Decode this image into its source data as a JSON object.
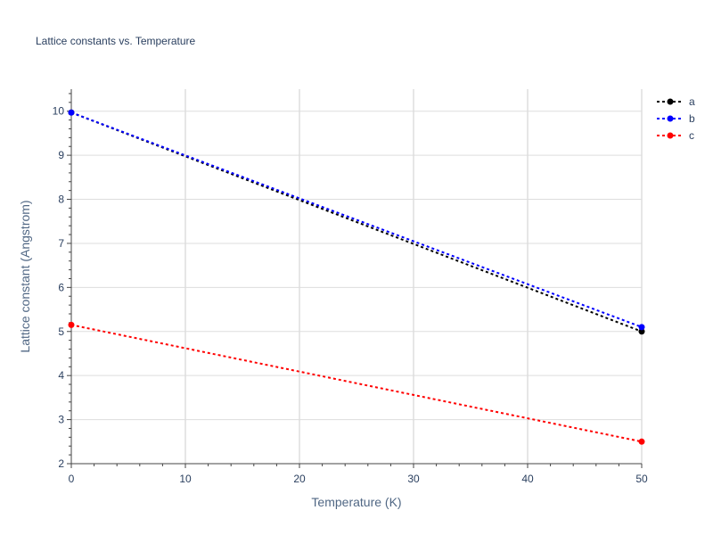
{
  "chart_data": {
    "type": "line",
    "title": "Lattice constants vs. Temperature",
    "xlabel": "Temperature (K)",
    "ylabel": "Lattice constant (Angstrom)",
    "xlim": [
      0,
      50
    ],
    "ylim": [
      2,
      10.5
    ],
    "x_ticks": [
      0,
      10,
      20,
      30,
      40,
      50
    ],
    "y_ticks": [
      2,
      3,
      4,
      5,
      6,
      7,
      8,
      9,
      10
    ],
    "grid": true,
    "legend_position": "top-right",
    "x": [
      0,
      50
    ],
    "series": [
      {
        "name": "a",
        "color": "#000000",
        "values": [
          9.97,
          5.0
        ]
      },
      {
        "name": "b",
        "color": "#0000ff",
        "values": [
          9.97,
          5.1
        ]
      },
      {
        "name": "c",
        "color": "#ff0000",
        "values": [
          5.15,
          2.5
        ]
      }
    ]
  }
}
